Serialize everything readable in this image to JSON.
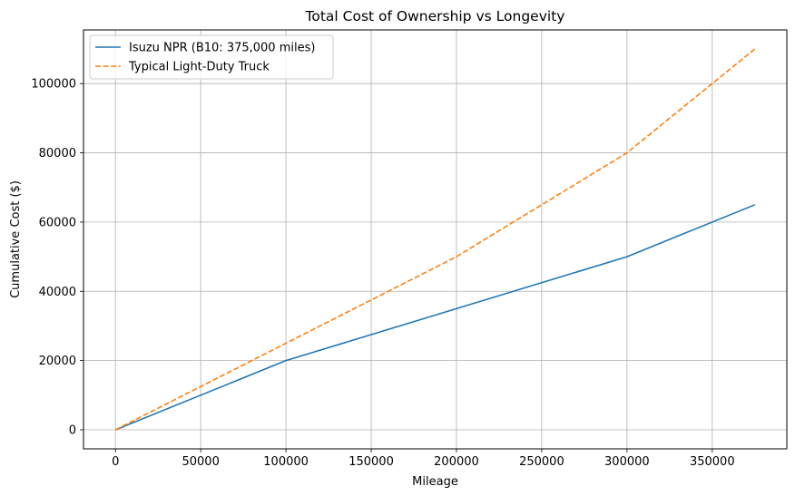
{
  "chart_data": {
    "type": "line",
    "title": "Total Cost of Ownership vs Longevity",
    "xlabel": "Mileage",
    "ylabel": "Cumulative Cost ($)",
    "xlim": [
      -18750,
      393750
    ],
    "ylim": [
      -5500,
      115500
    ],
    "x_ticks": [
      0,
      50000,
      100000,
      150000,
      200000,
      250000,
      300000,
      350000
    ],
    "y_ticks": [
      0,
      20000,
      40000,
      60000,
      80000,
      100000
    ],
    "grid": true,
    "legend_position": "top-left",
    "series": [
      {
        "name": "Isuzu NPR (B10: 375,000 miles)",
        "color": "#1f77b4",
        "style": "solid",
        "x": [
          0,
          100000,
          200000,
          300000,
          375000
        ],
        "y": [
          0,
          20000,
          35000,
          50000,
          65000
        ]
      },
      {
        "name": "Typical Light-Duty Truck",
        "color": "#ff7f0e",
        "style": "dashed",
        "x": [
          0,
          100000,
          200000,
          300000,
          375000
        ],
        "y": [
          0,
          25000,
          50000,
          80000,
          110000
        ]
      }
    ]
  }
}
